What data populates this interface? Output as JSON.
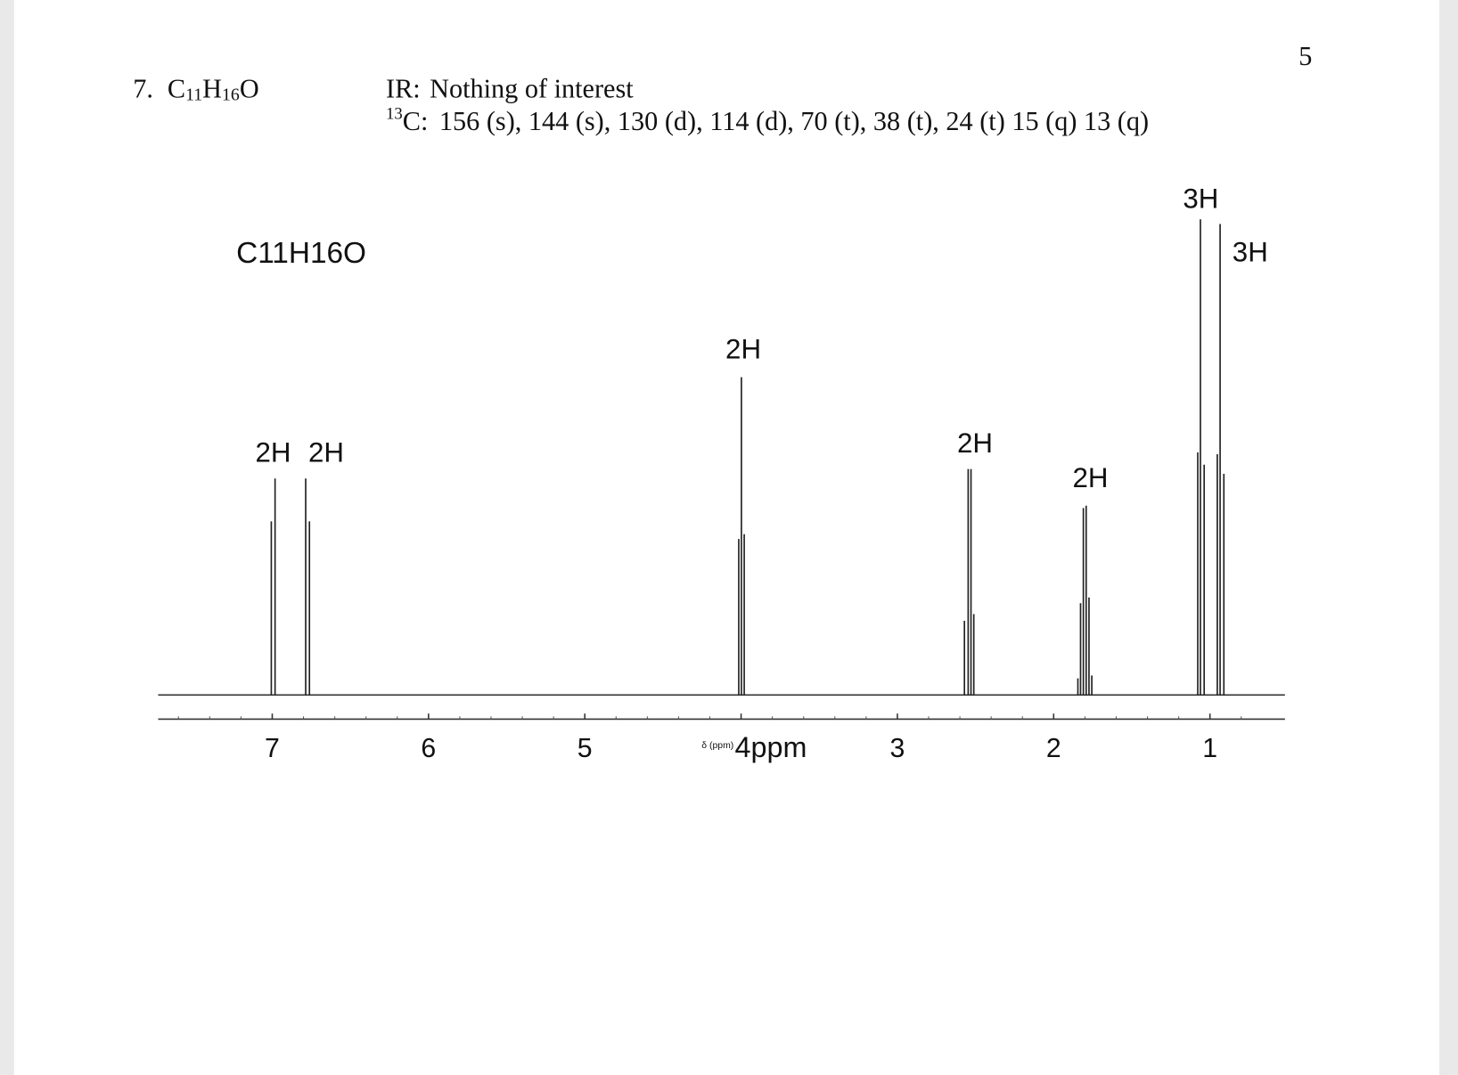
{
  "header": {
    "page_number": "5",
    "problem": {
      "number": "7.",
      "formula": [
        "C",
        "11",
        "H",
        "16",
        "O"
      ]
    },
    "ir": {
      "label": "IR:",
      "text": "Nothing of interest"
    },
    "carbon": {
      "isotope": "13",
      "label": "C:",
      "text": "156 (s), 144 (s), 130 (d), 114 (d), 70 (t), 38 (t), 24 (t) 15 (q) 13 (q)"
    }
  },
  "spectrum": {
    "title": "C11H16O",
    "axis_label": "δ (ppm)",
    "xlim": [
      7.73,
      0.52
    ],
    "xticks": [
      7,
      6,
      5,
      {
        "value": 4,
        "label": "4ppm"
      },
      3,
      2,
      1
    ],
    "ylim": [
      0,
      100
    ],
    "peaks": [
      {
        "label": "2H",
        "shifts": [
          7.006,
          6.982
        ],
        "intensities": [
          36.5,
          45.5
        ]
      },
      {
        "label": "2H",
        "shifts": [
          6.786,
          6.762
        ],
        "intensities": [
          45.5,
          36.5
        ]
      },
      {
        "label": "2H",
        "shifts": [
          4.015,
          3.998,
          3.98
        ],
        "intensities": [
          32.8,
          66.8,
          33.8
        ]
      },
      {
        "label": "2H",
        "shifts": [
          2.571,
          2.547,
          2.529,
          2.511
        ],
        "intensities": [
          15.6,
          47.5,
          47.5,
          17.0
        ]
      },
      {
        "label": "2H",
        "shifts": [
          1.845,
          1.828,
          1.81,
          1.792,
          1.774,
          1.756
        ],
        "intensities": [
          3.5,
          19.3,
          39.3,
          39.8,
          20.5,
          4.1
        ]
      },
      {
        "label": "3H",
        "shifts": [
          1.078,
          1.061,
          1.037
        ],
        "intensities": [
          51.0,
          100,
          48.4
        ]
      },
      {
        "label": "3H",
        "shifts": [
          0.953,
          0.935,
          0.911
        ],
        "intensities": [
          50.6,
          99.0,
          46.5
        ]
      }
    ]
  }
}
